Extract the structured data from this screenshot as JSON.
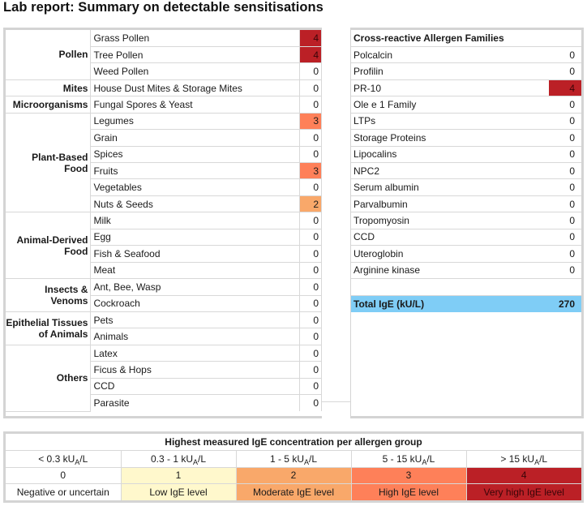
{
  "title": "Lab report: Summary on detectable sensitisations",
  "colors": {
    "level_0": "#ffffff",
    "level_1": "#fff8cc",
    "level_2": "#f9a86a",
    "level_3": "#fe8059",
    "level_4": "#bb2026",
    "total_row": "#7fcdf6",
    "border": "#d4d4d4"
  },
  "allergen_groups": [
    {
      "group": "Pollen",
      "items": [
        {
          "name": "Grass Pollen",
          "value": "4"
        },
        {
          "name": "Tree Pollen",
          "value": "4"
        },
        {
          "name": "Weed Pollen",
          "value": "0"
        }
      ]
    },
    {
      "group": "Mites",
      "items": [
        {
          "name": "House Dust Mites & Storage Mites",
          "value": "0"
        }
      ]
    },
    {
      "group": "Microorganisms",
      "items": [
        {
          "name": "Fungal Spores & Yeast",
          "value": "0"
        }
      ]
    },
    {
      "group": "Plant-Based Food",
      "items": [
        {
          "name": "Legumes",
          "value": "3"
        },
        {
          "name": "Grain",
          "value": "0"
        },
        {
          "name": "Spices",
          "value": "0"
        },
        {
          "name": "Fruits",
          "value": "3"
        },
        {
          "name": "Vegetables",
          "value": "0"
        },
        {
          "name": "Nuts & Seeds",
          "value": "2"
        }
      ]
    },
    {
      "group": "Animal-Derived Food",
      "items": [
        {
          "name": "Milk",
          "value": "0"
        },
        {
          "name": "Egg",
          "value": "0"
        },
        {
          "name": "Fish & Seafood",
          "value": "0"
        },
        {
          "name": "Meat",
          "value": "0"
        }
      ]
    },
    {
      "group": "Insects & Venoms",
      "items": [
        {
          "name": "Ant, Bee, Wasp",
          "value": "0"
        },
        {
          "name": "Cockroach",
          "value": "0"
        }
      ]
    },
    {
      "group": "Epithelial Tissues of Animals",
      "items": [
        {
          "name": "Pets",
          "value": "0"
        },
        {
          "name": "Animals",
          "value": "0"
        }
      ]
    },
    {
      "group": "Others",
      "items": [
        {
          "name": "Latex",
          "value": "0"
        },
        {
          "name": "Ficus & Hops",
          "value": "0"
        },
        {
          "name": "CCD",
          "value": "0"
        },
        {
          "name": "Parasite",
          "value": "0"
        }
      ]
    }
  ],
  "cross_reactive": {
    "header": "Cross-reactive Allergen Families",
    "items": [
      {
        "name": "Polcalcin",
        "value": "0"
      },
      {
        "name": "Profilin",
        "value": "0"
      },
      {
        "name": "PR-10",
        "value": "4"
      },
      {
        "name": "Ole e 1 Family",
        "value": "0"
      },
      {
        "name": "LTPs",
        "value": "0"
      },
      {
        "name": "Storage Proteins",
        "value": "0"
      },
      {
        "name": "Lipocalins",
        "value": "0"
      },
      {
        "name": "NPC2",
        "value": "0"
      },
      {
        "name": "Serum albumin",
        "value": "0"
      },
      {
        "name": "Parvalbumin",
        "value": "0"
      },
      {
        "name": "Tropomyosin",
        "value": "0"
      },
      {
        "name": "CCD",
        "value": "0"
      },
      {
        "name": "Uteroglobin",
        "value": "0"
      },
      {
        "name": "Arginine kinase",
        "value": "0"
      }
    ],
    "total_label": "Total IgE (kU/L)",
    "total_value": "270"
  },
  "legend": {
    "title": "Highest measured IgE concentration per allergen group",
    "classes": [
      {
        "range_prefix": "< 0.3 kU",
        "range_sub": "A",
        "range_suffix": "/L",
        "level": "0",
        "label": "Negative or uncertain"
      },
      {
        "range_prefix": "0.3 - 1 kU",
        "range_sub": "A",
        "range_suffix": "/L",
        "level": "1",
        "label": "Low IgE level"
      },
      {
        "range_prefix": "1 - 5 kU",
        "range_sub": "A",
        "range_suffix": "/L",
        "level": "2",
        "label": "Moderate IgE level"
      },
      {
        "range_prefix": "5 - 15 kU",
        "range_sub": "A",
        "range_suffix": "/L",
        "level": "3",
        "label": "High IgE level"
      },
      {
        "range_prefix": "> 15 kU",
        "range_sub": "A",
        "range_suffix": "/L",
        "level": "4",
        "label": "Very high IgE level"
      }
    ]
  }
}
